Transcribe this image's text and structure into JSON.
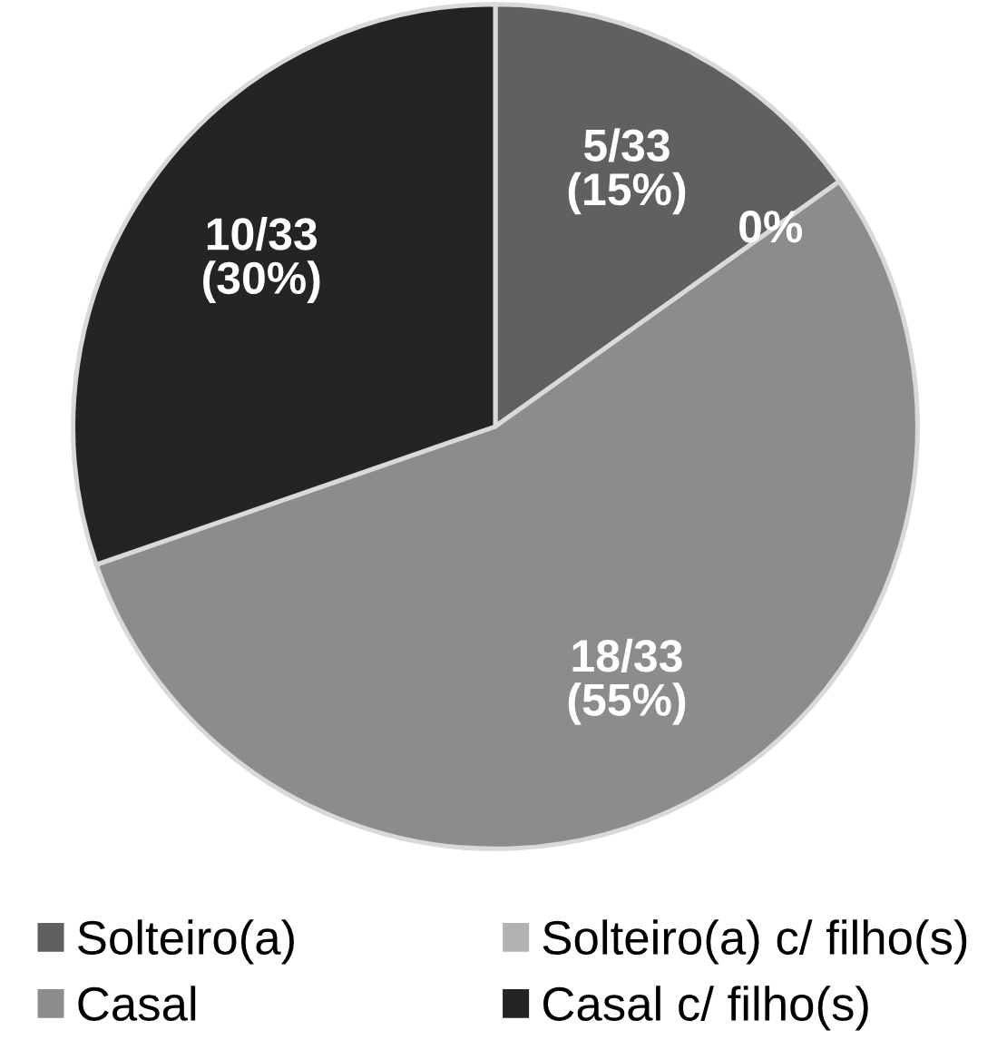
{
  "chart_data": {
    "type": "pie",
    "categories": [
      "Solteiro(a)",
      "Solteiro(a) c/ filho(s)",
      "Casal",
      "Casal c/ filho(s)"
    ],
    "values": [
      5,
      0,
      18,
      10
    ],
    "colors": [
      "#606060",
      "#b2b2b2",
      "#8c8c8c",
      "#242424"
    ],
    "value_labels": [
      "5/33\n(15%)",
      "0%",
      "18/33\n(55%)",
      "10/33\n(30%)"
    ],
    "legend": "bottom"
  }
}
